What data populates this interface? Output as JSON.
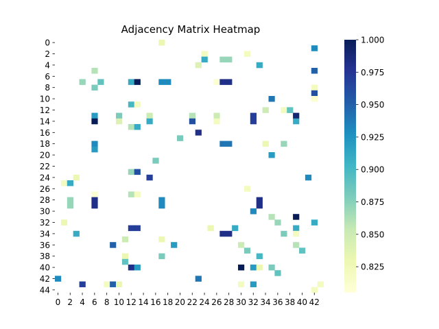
{
  "chart_data": {
    "type": "heatmap",
    "title": "Adjacency Matrix Heatmap",
    "rows": 45,
    "cols": 44,
    "x_tick_labels": [
      "0",
      "2",
      "4",
      "6",
      "8",
      "10",
      "12",
      "14",
      "16",
      "18",
      "20",
      "22",
      "24",
      "26",
      "28",
      "30",
      "32",
      "34",
      "36",
      "38",
      "40",
      "42"
    ],
    "y_tick_labels": [
      "0",
      "2",
      "4",
      "6",
      "8",
      "10",
      "12",
      "14",
      "16",
      "18",
      "20",
      "22",
      "24",
      "26",
      "28",
      "30",
      "32",
      "34",
      "36",
      "38",
      "40",
      "42",
      "44"
    ],
    "colorbar": {
      "vmin": 0.805,
      "vmax": 1.0,
      "tick_values": [
        0.825,
        0.85,
        0.875,
        0.9,
        0.925,
        0.95,
        0.975,
        1.0
      ],
      "tick_labels": [
        "0.825",
        "0.850",
        "0.875",
        "0.900",
        "0.925",
        "0.950",
        "0.975",
        "1.000"
      ],
      "colormap": "YlGnBu"
    },
    "colormap_stops": [
      "#ffffd9",
      "#edf8b1",
      "#c7e9b4",
      "#7fcdbb",
      "#41b6c4",
      "#1d91c0",
      "#225ea8",
      "#253494",
      "#081d58"
    ],
    "cells": [
      [
        0,
        17,
        0.83
      ],
      [
        1,
        42,
        0.93
      ],
      [
        2,
        24,
        0.82
      ],
      [
        2,
        31,
        0.82
      ],
      [
        3,
        24,
        0.91
      ],
      [
        3,
        27,
        0.87
      ],
      [
        3,
        28,
        0.87
      ],
      [
        4,
        23,
        0.84
      ],
      [
        4,
        33,
        0.91
      ],
      [
        5,
        6,
        0.86
      ],
      [
        5,
        42,
        0.95
      ],
      [
        7,
        4,
        0.87
      ],
      [
        7,
        7,
        0.89
      ],
      [
        7,
        12,
        0.91
      ],
      [
        7,
        13,
        1.0
      ],
      [
        7,
        17,
        0.93
      ],
      [
        7,
        18,
        0.93
      ],
      [
        7,
        26,
        0.81
      ],
      [
        7,
        27,
        0.98
      ],
      [
        7,
        28,
        0.98
      ],
      [
        8,
        6,
        0.88
      ],
      [
        8,
        42,
        0.82
      ],
      [
        9,
        42,
        0.96
      ],
      [
        10,
        35,
        0.94
      ],
      [
        10,
        42,
        0.81
      ],
      [
        11,
        12,
        0.9
      ],
      [
        11,
        13,
        0.82
      ],
      [
        12,
        34,
        0.85
      ],
      [
        12,
        37,
        0.82
      ],
      [
        12,
        38,
        0.89
      ],
      [
        13,
        6,
        0.92
      ],
      [
        13,
        10,
        0.88
      ],
      [
        13,
        15,
        0.85
      ],
      [
        13,
        22,
        0.86
      ],
      [
        13,
        26,
        0.85
      ],
      [
        13,
        32,
        0.97
      ],
      [
        13,
        39,
        0.99
      ],
      [
        14,
        6,
        1.0
      ],
      [
        14,
        10,
        0.84
      ],
      [
        14,
        15,
        0.91
      ],
      [
        14,
        22,
        0.96
      ],
      [
        14,
        26,
        0.82
      ],
      [
        14,
        32,
        0.97
      ],
      [
        14,
        39,
        0.91
      ],
      [
        15,
        12,
        0.86
      ],
      [
        15,
        13,
        0.91
      ],
      [
        16,
        23,
        0.98
      ],
      [
        17,
        20,
        0.88
      ],
      [
        18,
        6,
        0.93
      ],
      [
        18,
        27,
        0.94
      ],
      [
        18,
        28,
        0.94
      ],
      [
        18,
        34,
        0.83
      ],
      [
        18,
        37,
        0.87
      ],
      [
        19,
        6,
        0.92
      ],
      [
        20,
        35,
        0.92
      ],
      [
        21,
        16,
        0.88
      ],
      [
        23,
        12,
        0.87
      ],
      [
        23,
        13,
        0.96
      ],
      [
        24,
        3,
        0.83
      ],
      [
        24,
        15,
        0.97
      ],
      [
        24,
        41,
        0.93
      ],
      [
        25,
        1,
        0.82
      ],
      [
        25,
        2,
        0.91
      ],
      [
        26,
        31,
        0.82
      ],
      [
        27,
        6,
        0.81
      ],
      [
        27,
        12,
        0.86
      ],
      [
        27,
        13,
        0.82
      ],
      [
        28,
        2,
        0.87
      ],
      [
        28,
        6,
        0.98
      ],
      [
        28,
        17,
        0.93
      ],
      [
        28,
        33,
        0.98
      ],
      [
        29,
        2,
        0.87
      ],
      [
        29,
        6,
        0.98
      ],
      [
        29,
        17,
        0.93
      ],
      [
        29,
        33,
        0.98
      ],
      [
        30,
        32,
        0.93
      ],
      [
        31,
        35,
        0.86
      ],
      [
        31,
        39,
        1.0
      ],
      [
        32,
        1,
        0.83
      ],
      [
        32,
        36,
        0.87
      ],
      [
        32,
        42,
        0.91
      ],
      [
        33,
        12,
        0.97
      ],
      [
        33,
        13,
        0.97
      ],
      [
        33,
        25,
        0.83
      ],
      [
        33,
        29,
        0.91
      ],
      [
        33,
        39,
        0.91
      ],
      [
        34,
        3,
        0.91
      ],
      [
        34,
        27,
        0.98
      ],
      [
        34,
        28,
        0.98
      ],
      [
        34,
        37,
        0.88
      ],
      [
        34,
        39,
        0.82
      ],
      [
        35,
        11,
        0.85
      ],
      [
        35,
        17,
        0.83
      ],
      [
        36,
        9,
        0.95
      ],
      [
        36,
        19,
        0.92
      ],
      [
        36,
        30,
        0.85
      ],
      [
        36,
        39,
        0.86
      ],
      [
        37,
        31,
        0.88
      ],
      [
        37,
        40,
        0.89
      ],
      [
        38,
        11,
        0.83
      ],
      [
        38,
        17,
        0.88
      ],
      [
        38,
        33,
        0.9
      ],
      [
        39,
        11,
        0.89
      ],
      [
        40,
        12,
        0.98
      ],
      [
        40,
        13,
        0.92
      ],
      [
        40,
        30,
        1.0
      ],
      [
        40,
        32,
        0.92
      ],
      [
        40,
        33,
        0.83
      ],
      [
        40,
        35,
        0.88
      ],
      [
        41,
        36,
        0.89
      ],
      [
        42,
        0,
        0.93
      ],
      [
        42,
        23,
        0.94
      ],
      [
        43,
        4,
        0.97
      ],
      [
        43,
        8,
        0.82
      ],
      [
        43,
        9,
        0.95
      ],
      [
        43,
        10,
        0.83
      ],
      [
        43,
        30,
        0.82
      ],
      [
        43,
        32,
        0.92
      ],
      [
        43,
        43,
        0.82
      ],
      [
        44,
        42,
        0.82
      ]
    ]
  }
}
